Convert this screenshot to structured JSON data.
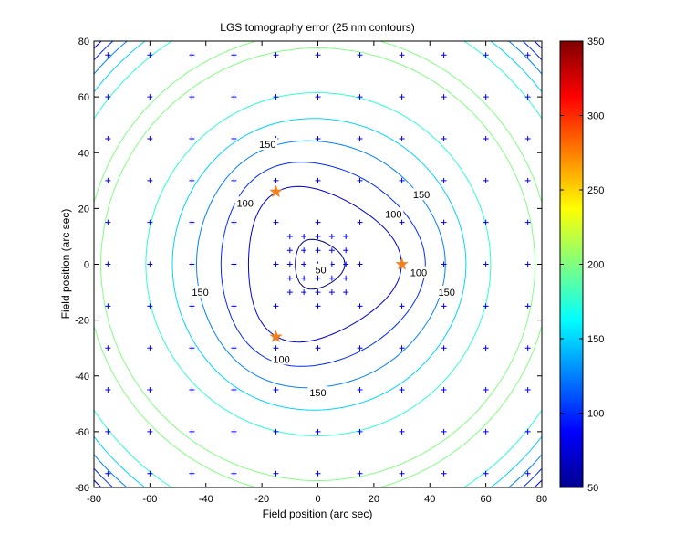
{
  "chart_data": {
    "type": "contour",
    "title": "LGS tomography error (25 nm contours)",
    "xlabel": "Field position (arc sec)",
    "ylabel": "Field position (arc sec)",
    "xlim": [
      -80,
      80
    ],
    "ylim": [
      -80,
      80
    ],
    "xticks": [
      -80,
      -60,
      -40,
      -20,
      0,
      20,
      40,
      60,
      80
    ],
    "yticks": [
      -80,
      -60,
      -40,
      -20,
      0,
      20,
      40,
      60,
      80
    ],
    "grid": false,
    "contour_step": 25,
    "levels": [
      50,
      75,
      100,
      125,
      150,
      175,
      200,
      225,
      250,
      275,
      300,
      325,
      350
    ],
    "colorbar": {
      "range": [
        50,
        350
      ],
      "ticks": [
        50,
        100,
        150,
        200,
        250,
        300,
        350
      ],
      "colormap": "jet",
      "position": "right"
    },
    "contour_labels": [
      {
        "text": "150",
        "x": -18,
        "y": 43
      },
      {
        "text": "150",
        "x": 37,
        "y": 25
      },
      {
        "text": "150",
        "x": -42,
        "y": -10
      },
      {
        "text": "150",
        "x": 46,
        "y": -10
      },
      {
        "text": "150",
        "x": 0,
        "y": -46
      },
      {
        "text": "100",
        "x": -26,
        "y": 22
      },
      {
        "text": "100",
        "x": 27,
        "y": 18
      },
      {
        "text": "100",
        "x": 36,
        "y": -3
      },
      {
        "text": "100",
        "x": -13,
        "y": -34
      },
      {
        "text": "50",
        "x": 1,
        "y": -2
      }
    ],
    "laser_guide_stars": [
      {
        "x": -15,
        "y": 26
      },
      {
        "x": -15,
        "y": -26
      },
      {
        "x": 30,
        "y": 0
      }
    ],
    "colors": {
      "guide_star": "#f08020",
      "sample_marker": "#0000ff"
    }
  }
}
